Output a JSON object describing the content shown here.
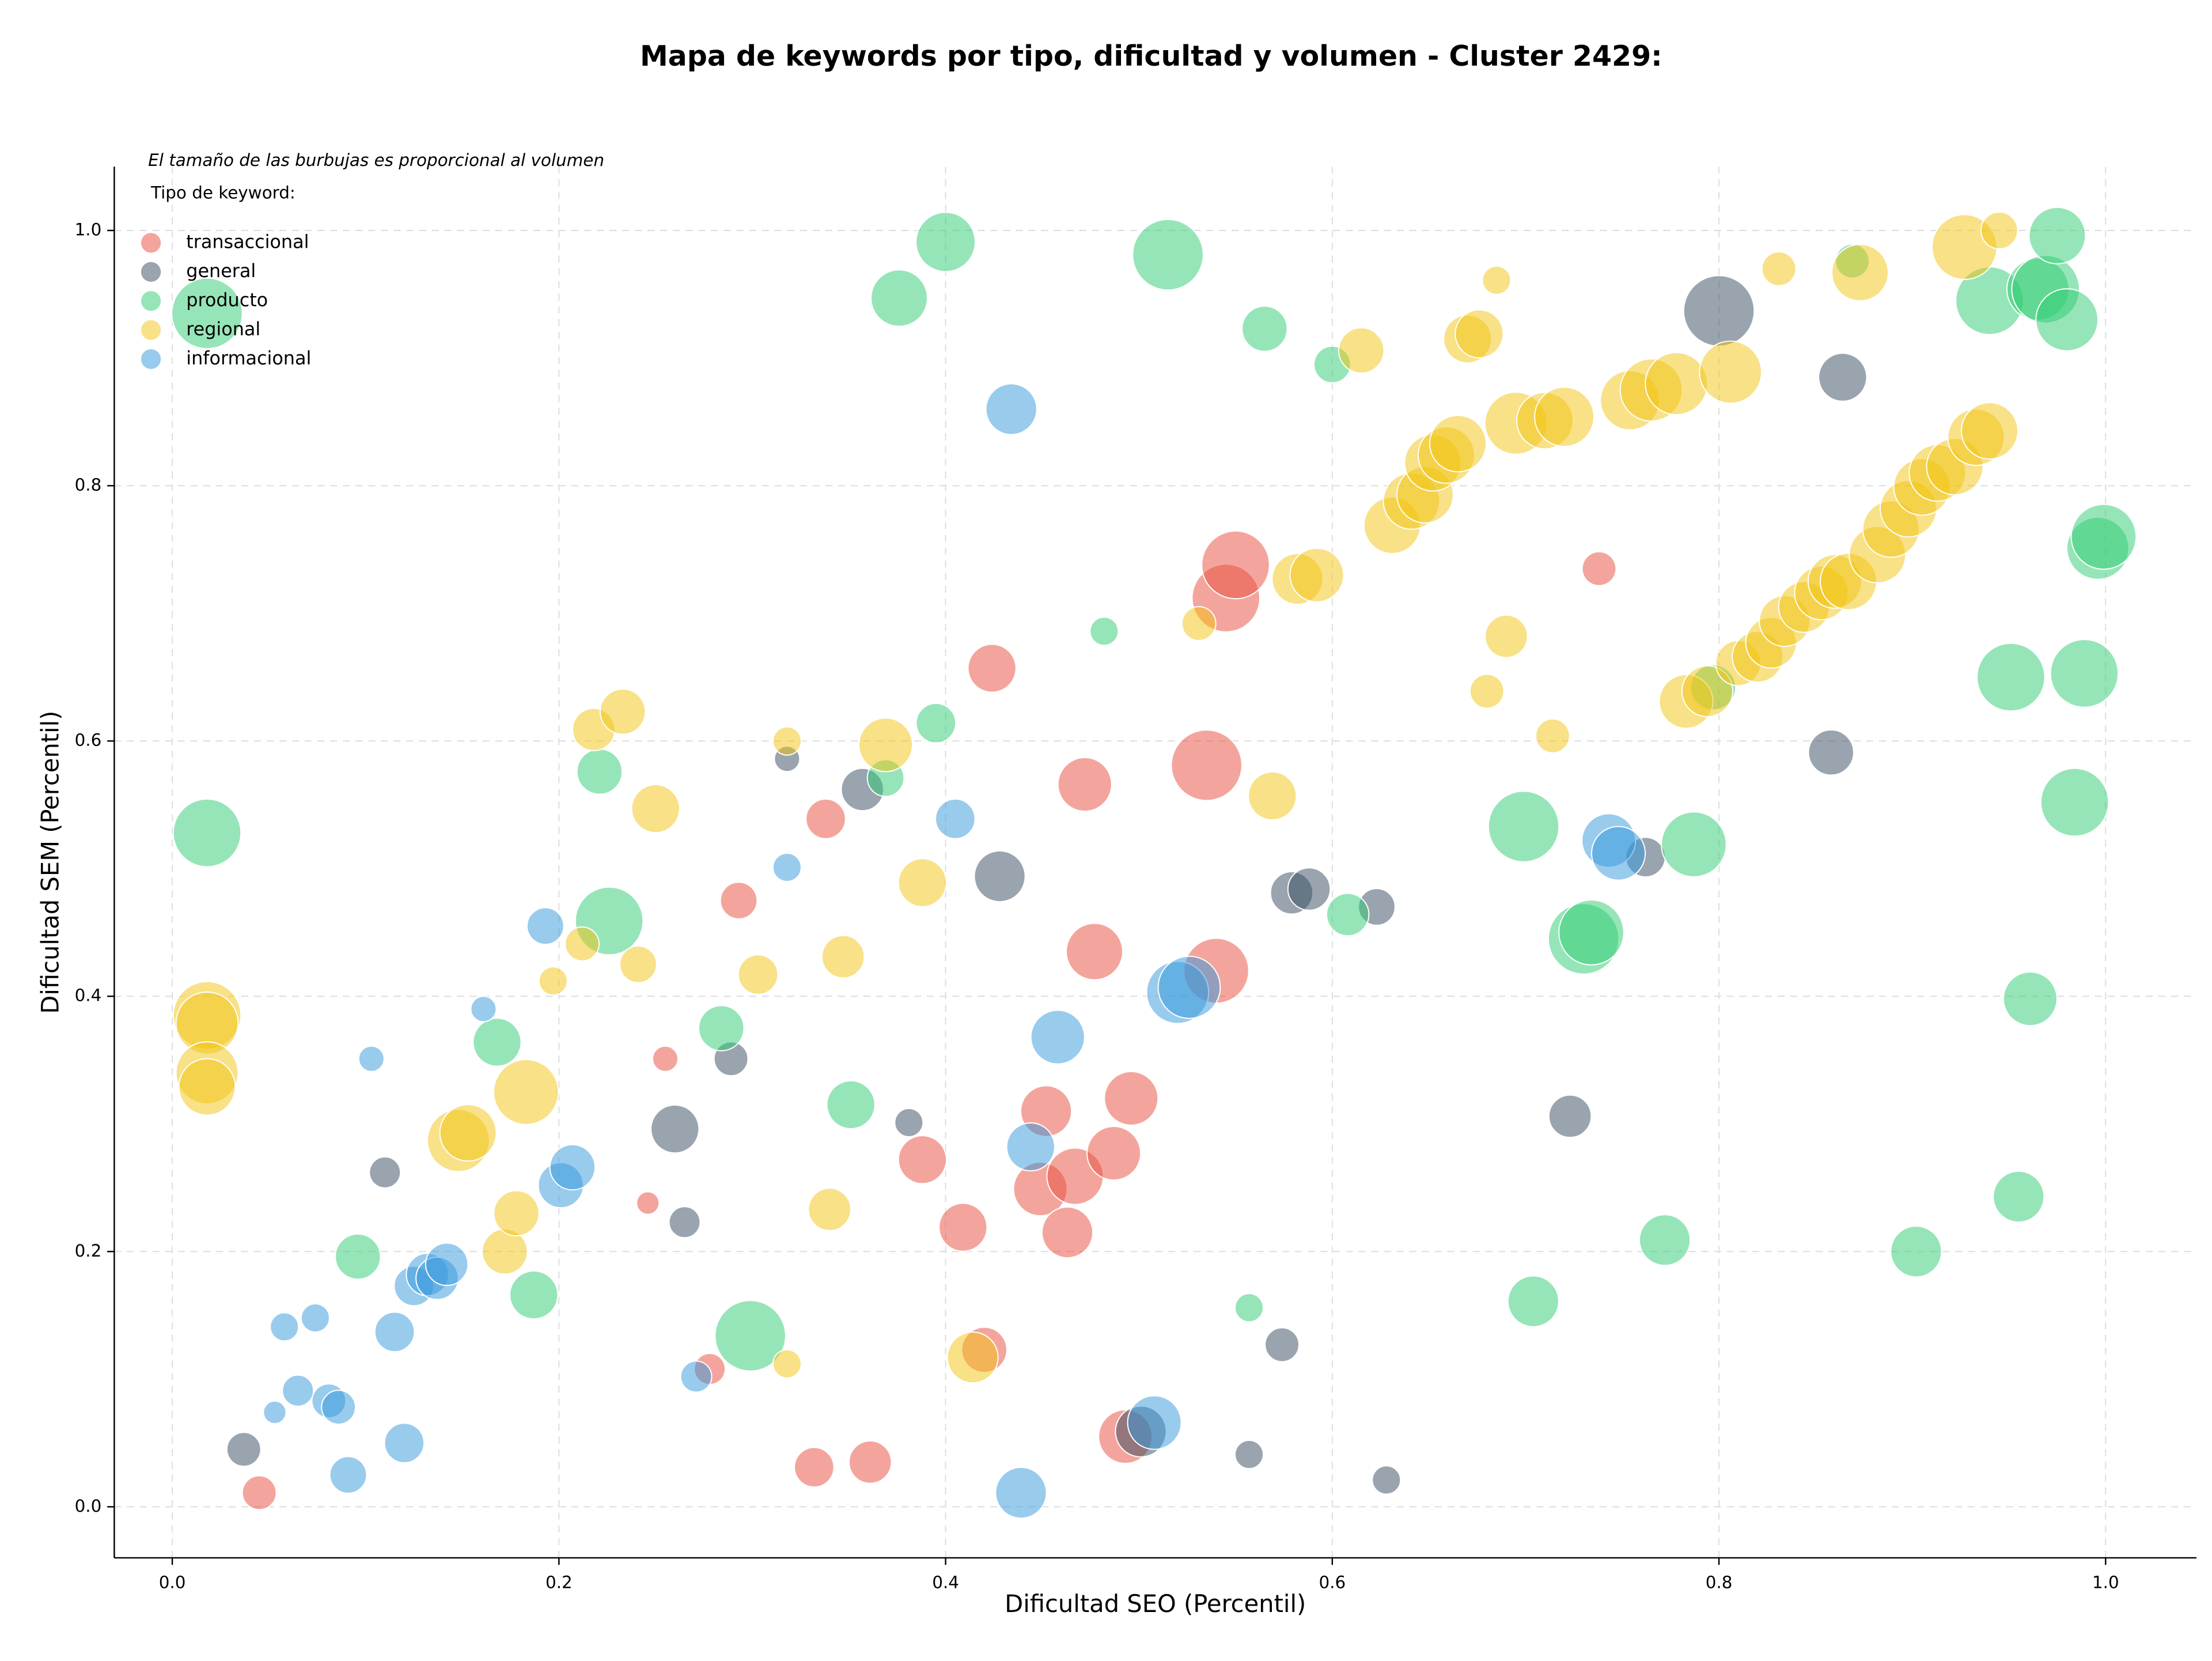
{
  "chart_data": {
    "type": "bubble",
    "title": "Mapa de keywords por tipo, dificultad y volumen - Cluster 2429:",
    "subtitle": "El tamaño de las burbujas es proporcional al volumen",
    "legend_title": "Tipo de keyword:",
    "legend_position": "upper left",
    "x_label": "Dificultad SEO (Percentil)",
    "y_label": "Dificultad SEM (Percentil)",
    "xlim": [
      -0.03,
      1.047
    ],
    "ylim": [
      -0.04,
      1.05
    ],
    "xticks": [
      {
        "value": 0,
        "label": "0.0"
      },
      0.2,
      0.4,
      0.6,
      0.8,
      {
        "value": 1,
        "label": "1.0"
      }
    ],
    "yticks": [
      {
        "value": 0,
        "label": "0.0"
      },
      0.2,
      0.4,
      0.6,
      0.8,
      {
        "value": 1,
        "label": "1.0"
      }
    ],
    "grid": true,
    "series": [
      {
        "name": "transaccional",
        "color": "#e74c3c",
        "x": [
          0.045,
          0.255,
          0.246,
          0.293,
          0.338,
          0.278,
          0.332,
          0.361,
          0.388,
          0.409,
          0.42,
          0.424,
          0.452,
          0.449,
          0.463,
          0.467,
          0.477,
          0.472,
          0.487,
          0.496,
          0.493,
          0.535,
          0.54,
          0.545,
          0.55,
          0.738
        ],
        "values": [
          0.011,
          0.351,
          0.238,
          0.475,
          0.539,
          0.108,
          0.031,
          0.035,
          0.272,
          0.219,
          0.123,
          0.657,
          0.31,
          0.249,
          0.215,
          0.259,
          0.435,
          0.566,
          0.277,
          0.32,
          0.055,
          0.581,
          0.42,
          0.712,
          0.738,
          0.735
        ],
        "sizes": [
          12,
          9,
          8,
          13,
          14,
          11,
          14,
          15,
          17,
          17,
          16,
          17,
          18,
          19,
          18,
          20,
          20,
          19,
          19,
          19,
          19,
          25,
          23,
          24,
          24,
          12
        ]
      },
      {
        "name": "general",
        "color": "#34495e",
        "x": [
          0.037,
          0.11,
          0.26,
          0.265,
          0.289,
          0.318,
          0.357,
          0.381,
          0.428,
          0.501,
          0.557,
          0.574,
          0.579,
          0.588,
          0.623,
          0.628,
          0.723,
          0.762,
          0.8,
          0.858,
          0.864
        ],
        "values": [
          0.045,
          0.262,
          0.296,
          0.223,
          0.351,
          0.586,
          0.562,
          0.301,
          0.494,
          0.059,
          0.041,
          0.127,
          0.481,
          0.484,
          0.47,
          0.021,
          0.306,
          0.509,
          0.937,
          0.591,
          0.885
        ],
        "sizes": [
          12,
          11,
          17,
          11,
          12,
          9,
          15,
          10,
          18,
          18,
          10,
          12,
          15,
          15,
          13,
          10,
          15,
          14,
          25,
          16,
          17
        ]
      },
      {
        "name": "producto",
        "color": "#2ecc71",
        "x": [
          0.018,
          0.018,
          0.096,
          0.168,
          0.187,
          0.221,
          0.226,
          0.284,
          0.299,
          0.351,
          0.369,
          0.376,
          0.395,
          0.4,
          0.482,
          0.515,
          0.557,
          0.565,
          0.6,
          0.608,
          0.699,
          0.704,
          0.73,
          0.734,
          0.772,
          0.787,
          0.797,
          0.869,
          0.902,
          0.94,
          0.951,
          0.955,
          0.961,
          0.965,
          0.969,
          0.975,
          0.98,
          0.984,
          0.989,
          0.996,
          0.999
        ],
        "values": [
          0.935,
          0.528,
          0.196,
          0.364,
          0.166,
          0.576,
          0.459,
          0.375,
          0.134,
          0.315,
          0.571,
          0.947,
          0.614,
          0.991,
          0.686,
          0.981,
          0.156,
          0.923,
          0.895,
          0.464,
          0.533,
          0.161,
          0.445,
          0.45,
          0.209,
          0.519,
          0.642,
          0.976,
          0.2,
          0.945,
          0.65,
          0.243,
          0.398,
          0.954,
          0.954,
          0.996,
          0.93,
          0.552,
          0.653,
          0.751,
          0.76
        ],
        "sizes": [
          25,
          24,
          16,
          17,
          17,
          16,
          24,
          16,
          25,
          17,
          13,
          20,
          14,
          21,
          10,
          25,
          10,
          16,
          13,
          15,
          25,
          18,
          25,
          23,
          18,
          23,
          16,
          12,
          18,
          24,
          24,
          18,
          19,
          22,
          24,
          20,
          22,
          24,
          24,
          22,
          23
        ]
      },
      {
        "name": "regional",
        "color": "#f1c40f",
        "x": [
          0.018,
          0.018,
          0.018,
          0.018,
          0.148,
          0.153,
          0.172,
          0.178,
          0.183,
          0.197,
          0.212,
          0.218,
          0.233,
          0.241,
          0.25,
          0.303,
          0.318,
          0.318,
          0.34,
          0.347,
          0.369,
          0.388,
          0.414,
          0.531,
          0.569,
          0.582,
          0.592,
          0.615,
          0.631,
          0.641,
          0.648,
          0.652,
          0.659,
          0.665,
          0.67,
          0.676,
          0.68,
          0.685,
          0.69,
          0.695,
          0.71,
          0.72,
          0.714,
          0.754,
          0.765,
          0.778,
          0.806,
          0.783,
          0.794,
          0.81,
          0.82,
          0.827,
          0.834,
          0.844,
          0.853,
          0.86,
          0.867,
          0.873,
          0.831,
          0.882,
          0.889,
          0.898,
          0.905,
          0.913,
          0.922,
          0.927,
          0.933,
          0.94,
          0.945
        ],
        "values": [
          0.385,
          0.379,
          0.34,
          0.329,
          0.287,
          0.293,
          0.2,
          0.23,
          0.325,
          0.412,
          0.441,
          0.609,
          0.623,
          0.425,
          0.547,
          0.417,
          0.6,
          0.112,
          0.233,
          0.431,
          0.597,
          0.489,
          0.117,
          0.692,
          0.557,
          0.727,
          0.73,
          0.906,
          0.769,
          0.788,
          0.793,
          0.818,
          0.824,
          0.833,
          0.915,
          0.919,
          0.639,
          0.961,
          0.682,
          0.849,
          0.851,
          0.854,
          0.604,
          0.867,
          0.875,
          0.88,
          0.889,
          0.631,
          0.639,
          0.661,
          0.666,
          0.677,
          0.694,
          0.705,
          0.716,
          0.725,
          0.725,
          0.967,
          0.97,
          0.746,
          0.766,
          0.782,
          0.799,
          0.81,
          0.815,
          0.987,
          0.838,
          0.843,
          1.0
        ],
        "sizes": [
          24,
          22,
          22,
          20,
          22,
          20,
          16,
          16,
          23,
          10,
          12,
          15,
          16,
          13,
          17,
          14,
          10,
          10,
          15,
          15,
          19,
          17,
          18,
          12,
          17,
          18,
          19,
          16,
          20,
          20,
          20,
          20,
          20,
          20,
          17,
          17,
          12,
          10,
          15,
          22,
          20,
          21,
          12,
          21,
          22,
          22,
          22,
          19,
          18,
          16,
          18,
          18,
          18,
          18,
          19,
          19,
          20,
          20,
          12,
          20,
          20,
          20,
          20,
          20,
          20,
          23,
          20,
          20,
          13
        ]
      },
      {
        "name": "informacional",
        "color": "#3498db",
        "x": [
          0.053,
          0.058,
          0.065,
          0.074,
          0.081,
          0.086,
          0.091,
          0.103,
          0.115,
          0.12,
          0.125,
          0.132,
          0.137,
          0.142,
          0.161,
          0.193,
          0.201,
          0.207,
          0.271,
          0.318,
          0.405,
          0.434,
          0.439,
          0.444,
          0.458,
          0.508,
          0.52,
          0.526,
          0.743,
          0.748
        ],
        "values": [
          0.074,
          0.141,
          0.091,
          0.148,
          0.083,
          0.078,
          0.025,
          0.351,
          0.137,
          0.05,
          0.173,
          0.182,
          0.179,
          0.19,
          0.39,
          0.455,
          0.252,
          0.266,
          0.102,
          0.501,
          0.539,
          0.86,
          0.011,
          0.282,
          0.368,
          0.066,
          0.403,
          0.407,
          0.522,
          0.512
        ],
        "sizes": [
          8,
          10,
          11,
          10,
          12,
          12,
          13,
          9,
          14,
          14,
          14,
          15,
          15,
          15,
          9,
          13,
          16,
          16,
          11,
          10,
          14,
          18,
          18,
          17,
          19,
          19,
          22,
          22,
          19,
          19
        ]
      }
    ]
  }
}
